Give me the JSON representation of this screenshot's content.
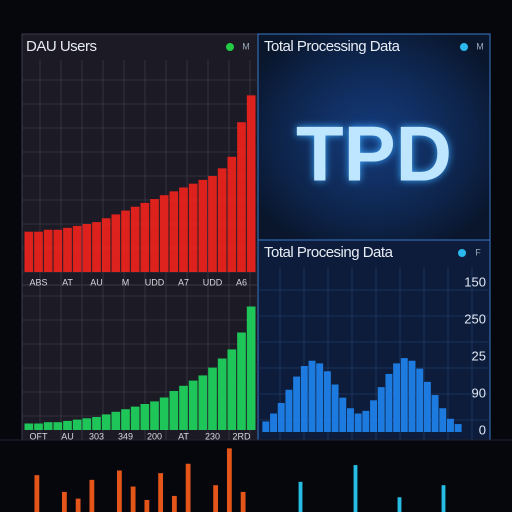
{
  "chart_data": [
    {
      "type": "bar",
      "title": "DAU Users",
      "icon": "M",
      "color": "#e8231e",
      "dot": "#22cc44",
      "values": [
        21,
        21,
        22,
        22,
        23,
        24,
        25,
        26,
        28,
        30,
        32,
        34,
        36,
        38,
        40,
        42,
        44,
        46,
        48,
        50,
        54,
        60,
        78,
        92
      ],
      "ylim": [
        0,
        100
      ],
      "x_labels": [
        "ABS",
        "AT",
        "AU",
        "M",
        "UDD",
        "A7",
        "UDD",
        "A6"
      ]
    },
    {
      "type": "bar",
      "color": "#1fcf5c",
      "values": [
        5,
        5,
        6,
        6,
        7,
        8,
        9,
        10,
        12,
        14,
        16,
        18,
        20,
        22,
        25,
        30,
        34,
        38,
        42,
        48,
        55,
        62,
        75,
        95
      ],
      "ylim": [
        0,
        100
      ],
      "x_labels": [
        "OFT",
        "AU",
        "303",
        "349",
        "200",
        "AT",
        "230",
        "2RD"
      ]
    },
    {
      "type": "bar",
      "color": "#f05a1a",
      "values": [
        55,
        0,
        30,
        20,
        48,
        0,
        62,
        38,
        18,
        58,
        24,
        72,
        0,
        40,
        95,
        30
      ],
      "ylim": [
        0,
        100
      ]
    },
    {
      "type": "text",
      "title": "Total Processing Data",
      "icon": "M",
      "dot": "#2ab8ee",
      "big": "TPD"
    },
    {
      "type": "bar",
      "title": "Total Procesing Data",
      "icon": "F",
      "color": "#1f7fe8",
      "dot": "#2ab8ee",
      "values": [
        8,
        14,
        22,
        32,
        42,
        50,
        54,
        52,
        46,
        36,
        26,
        18,
        14,
        16,
        24,
        34,
        44,
        52,
        56,
        54,
        48,
        38,
        28,
        18,
        10,
        6
      ],
      "ylim": [
        0,
        100
      ],
      "y_labels": [
        "150",
        "250",
        "25",
        "90",
        "0"
      ]
    },
    {
      "type": "bar",
      "color": "#28c6f0",
      "values": [
        0,
        0,
        0,
        45,
        0,
        0,
        0,
        0,
        70,
        0,
        0,
        0,
        22,
        0,
        0,
        0,
        40,
        0,
        0,
        0
      ],
      "ylim": [
        0,
        100
      ]
    }
  ]
}
